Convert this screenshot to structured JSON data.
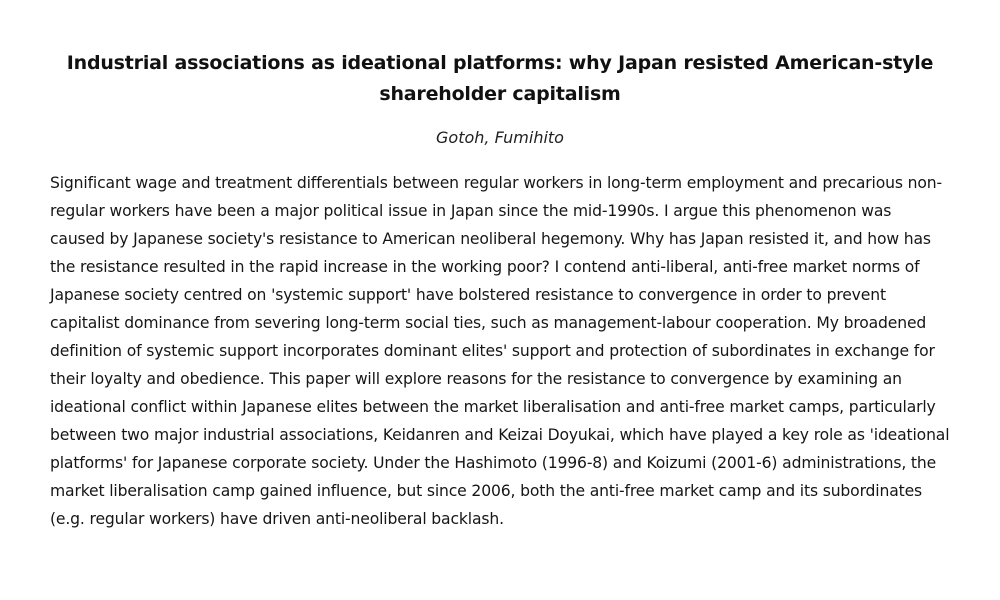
{
  "paper": {
    "title": "Industrial associations as ideational platforms: why Japan resisted American-style shareholder capitalism",
    "author": "Gotoh, Fumihito",
    "abstract": "Significant wage and treatment differentials between regular workers in long-term employment and precarious non-regular workers have been a major political issue in Japan since the mid-1990s. I argue this phenomenon was caused by Japanese society's resistance to American neoliberal hegemony. Why has Japan resisted it, and how has the resistance resulted in the rapid increase in the working poor? I contend anti-liberal, anti-free market norms of Japanese society centred on 'systemic support' have bolstered resistance to convergence in order to prevent capitalist dominance from severing long-term social ties, such as management-labour cooperation. My broadened definition of systemic support incorporates dominant elites' support and protection of subordinates in exchange for their loyalty and obedience. This paper will explore reasons for the resistance to convergence by examining an ideational conflict within Japanese elites between the market liberalisation and anti-free market camps, particularly between two major industrial associations, Keidanren and Keizai Doyukai, which have played a key role as 'ideational platforms' for Japanese corporate society. Under the Hashimoto (1996-8) and Koizumi (2001-6) administrations, the market liberalisation camp gained influence, but since 2006, both the anti-free market camp and its subordinates (e.g. regular workers) have driven anti-neoliberal backlash."
  }
}
